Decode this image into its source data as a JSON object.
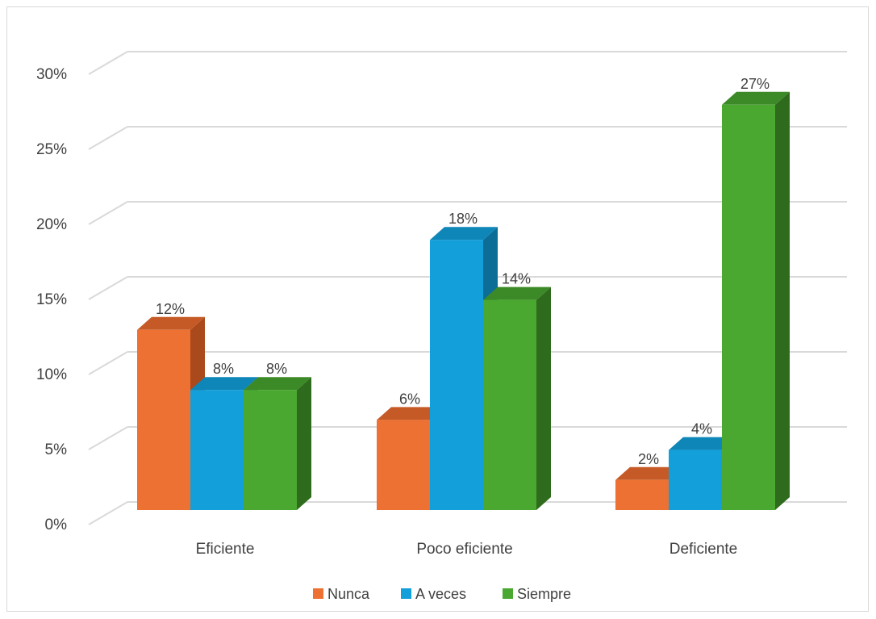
{
  "chart_data": {
    "type": "bar",
    "categories": [
      "Eficiente",
      "Poco eficiente",
      "Deficiente"
    ],
    "series": [
      {
        "name": "Nunca",
        "color": "#ed7133",
        "side": "#a9491c",
        "top": "#c65a26",
        "values": [
          12,
          6,
          2
        ]
      },
      {
        "name": "A veces",
        "color": "#139fd9",
        "side": "#0c6d96",
        "top": "#0f86b8",
        "values": [
          8,
          18,
          4
        ]
      },
      {
        "name": "Siempre",
        "color": "#4aa831",
        "side": "#2f6b1c",
        "top": "#3c8a27",
        "values": [
          8,
          14,
          27
        ]
      }
    ],
    "value_format": "percent",
    "ylim": [
      0,
      30
    ],
    "yticks": [
      0,
      5,
      10,
      15,
      20,
      25,
      30
    ],
    "ytick_labels": [
      "0%",
      "5%",
      "10%",
      "15%",
      "20%",
      "25%",
      "30%"
    ],
    "grid": true,
    "legend": "bottom",
    "title": "",
    "xlabel": "",
    "ylabel": ""
  }
}
